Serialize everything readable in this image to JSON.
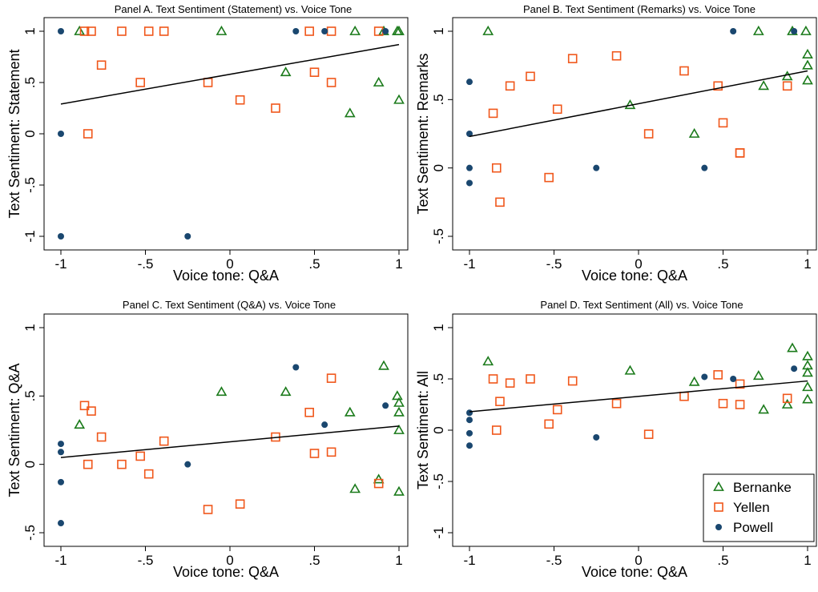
{
  "colors": {
    "Bernanke": "#1a7a1a",
    "Yellen": "#f0571b",
    "Powell": "#1a476f",
    "fitline": "#000000"
  },
  "legend": {
    "position": "inside bottom-right of Panel D",
    "entries": [
      {
        "name": "Bernanke",
        "marker": "triangle-hollow"
      },
      {
        "name": "Yellen",
        "marker": "square-hollow"
      },
      {
        "name": "Powell",
        "marker": "circle-filled"
      }
    ]
  },
  "chart_data": [
    {
      "type": "scatter",
      "title": "Panel A. Text Sentiment (Statement) vs. Voice Tone",
      "xlabel": "Voice tone: Q&A",
      "ylabel": "Text Sentiment: Statement",
      "xlim": [
        -1,
        1
      ],
      "ylim": [
        -1,
        1
      ],
      "xticks": [
        {
          "v": -1,
          "l": "-1"
        },
        {
          "v": -0.5,
          "l": "-.5"
        },
        {
          "v": 0,
          "l": "0"
        },
        {
          "v": 0.5,
          "l": ".5"
        },
        {
          "v": 1,
          "l": "1"
        }
      ],
      "yticks": [
        {
          "v": -1,
          "l": "-1"
        },
        {
          "v": -0.5,
          "l": "-.5"
        },
        {
          "v": 0,
          "l": "0"
        },
        {
          "v": 0.5,
          "l": ".5"
        },
        {
          "v": 1,
          "l": "1"
        }
      ],
      "fit": {
        "x": [
          -1,
          1
        ],
        "y": [
          0.29,
          0.87
        ]
      },
      "series": [
        {
          "name": "Bernanke",
          "x": [
            -0.89,
            -0.05,
            0.33,
            0.71,
            0.74,
            0.88,
            0.91,
            0.99,
            1.0,
            1.0
          ],
          "y": [
            1.0,
            1.0,
            0.6,
            0.2,
            1.0,
            0.5,
            1.0,
            1.0,
            1.0,
            0.33
          ]
        },
        {
          "name": "Yellen",
          "x": [
            -0.86,
            -0.84,
            -0.82,
            -0.76,
            -0.64,
            -0.53,
            -0.48,
            -0.39,
            -0.13,
            0.06,
            0.27,
            0.47,
            0.5,
            0.6,
            0.6,
            0.88
          ],
          "y": [
            1.0,
            0.0,
            1.0,
            0.67,
            1.0,
            0.5,
            1.0,
            1.0,
            0.5,
            0.33,
            0.25,
            1.0,
            0.6,
            1.0,
            0.5,
            1.0
          ]
        },
        {
          "name": "Powell",
          "x": [
            -1.0,
            -1.0,
            -1.0,
            -0.25,
            0.39,
            0.56,
            0.92
          ],
          "y": [
            1.0,
            0.0,
            -1.0,
            -1.0,
            1.0,
            1.0,
            1.0
          ]
        }
      ]
    },
    {
      "type": "scatter",
      "title": "Panel B. Text Sentiment (Remarks) vs. Voice Tone",
      "xlabel": "Voice tone: Q&A",
      "ylabel": "Text Sentiment: Remarks",
      "xlim": [
        -1,
        1
      ],
      "ylim": [
        -0.5,
        1
      ],
      "xticks": [
        {
          "v": -1,
          "l": "-1"
        },
        {
          "v": -0.5,
          "l": "-.5"
        },
        {
          "v": 0,
          "l": "0"
        },
        {
          "v": 0.5,
          "l": ".5"
        },
        {
          "v": 1,
          "l": "1"
        }
      ],
      "yticks": [
        {
          "v": -0.5,
          "l": "-.5"
        },
        {
          "v": 0,
          "l": "0"
        },
        {
          "v": 0.5,
          "l": ".5"
        },
        {
          "v": 1,
          "l": "1"
        }
      ],
      "fit": {
        "x": [
          -1,
          1
        ],
        "y": [
          0.23,
          0.71
        ]
      },
      "series": [
        {
          "name": "Bernanke",
          "x": [
            -0.89,
            -0.05,
            0.33,
            0.71,
            0.74,
            0.88,
            0.91,
            0.99,
            1.0,
            1.0,
            1.0
          ],
          "y": [
            1.0,
            0.46,
            0.25,
            1.0,
            0.6,
            0.67,
            1.0,
            1.0,
            0.83,
            0.75,
            0.64
          ]
        },
        {
          "name": "Yellen",
          "x": [
            -0.86,
            -0.84,
            -0.82,
            -0.76,
            -0.64,
            -0.53,
            -0.48,
            -0.39,
            -0.13,
            0.06,
            0.27,
            0.47,
            0.5,
            0.6,
            0.6,
            0.88
          ],
          "y": [
            0.4,
            0.0,
            -0.25,
            0.6,
            0.67,
            -0.07,
            0.43,
            0.8,
            0.82,
            0.25,
            0.71,
            0.6,
            0.33,
            0.11,
            0.11,
            0.6
          ]
        },
        {
          "name": "Powell",
          "x": [
            -1.0,
            -1.0,
            -1.0,
            -1.0,
            -0.25,
            0.39,
            0.56,
            0.92
          ],
          "y": [
            0.63,
            0.25,
            0.0,
            -0.11,
            0.0,
            0.0,
            1.0,
            1.0
          ]
        }
      ]
    },
    {
      "type": "scatter",
      "title": "Panel C. Text Sentiment (Q&A) vs. Voice Tone",
      "xlabel": "Voice tone: Q&A",
      "ylabel": "Text Sentiment: Q&A",
      "xlim": [
        -1,
        1
      ],
      "ylim": [
        -0.5,
        1
      ],
      "xticks": [
        {
          "v": -1,
          "l": "-1"
        },
        {
          "v": -0.5,
          "l": "-.5"
        },
        {
          "v": 0,
          "l": "0"
        },
        {
          "v": 0.5,
          "l": ".5"
        },
        {
          "v": 1,
          "l": "1"
        }
      ],
      "yticks": [
        {
          "v": -0.5,
          "l": "-.5"
        },
        {
          "v": 0,
          "l": "0"
        },
        {
          "v": 0.5,
          "l": ".5"
        },
        {
          "v": 1,
          "l": "1"
        }
      ],
      "fit": {
        "x": [
          -1,
          1
        ],
        "y": [
          0.05,
          0.28
        ]
      },
      "series": [
        {
          "name": "Bernanke",
          "x": [
            -0.89,
            -0.05,
            0.33,
            0.71,
            0.74,
            0.88,
            0.91,
            0.99,
            1.0,
            1.0,
            1.0,
            1.0
          ],
          "y": [
            0.29,
            0.53,
            0.53,
            0.38,
            -0.18,
            -0.11,
            0.72,
            0.5,
            0.45,
            0.38,
            0.25,
            -0.2
          ]
        },
        {
          "name": "Yellen",
          "x": [
            -0.86,
            -0.84,
            -0.82,
            -0.76,
            -0.64,
            -0.53,
            -0.48,
            -0.39,
            -0.13,
            0.06,
            0.27,
            0.47,
            0.5,
            0.6,
            0.6,
            0.88
          ],
          "y": [
            0.43,
            0.0,
            0.39,
            0.2,
            0.0,
            0.06,
            -0.07,
            0.17,
            -0.33,
            -0.29,
            0.2,
            0.38,
            0.08,
            0.63,
            0.09,
            -0.14
          ]
        },
        {
          "name": "Powell",
          "x": [
            -1.0,
            -1.0,
            -1.0,
            -1.0,
            -0.25,
            0.39,
            0.56,
            0.92
          ],
          "y": [
            0.15,
            0.09,
            -0.13,
            -0.43,
            0.0,
            0.71,
            0.29,
            0.43
          ]
        }
      ]
    },
    {
      "type": "scatter",
      "title": "Panel D. Text Sentiment (All) vs. Voice Tone",
      "xlabel": "Voice tone: Q&A",
      "ylabel": "Text Sentiment: All",
      "xlim": [
        -1,
        1
      ],
      "ylim": [
        -1,
        1
      ],
      "xticks": [
        {
          "v": -1,
          "l": "-1"
        },
        {
          "v": -0.5,
          "l": "-.5"
        },
        {
          "v": 0,
          "l": "0"
        },
        {
          "v": 0.5,
          "l": ".5"
        },
        {
          "v": 1,
          "l": "1"
        }
      ],
      "yticks": [
        {
          "v": -1,
          "l": "-1"
        },
        {
          "v": -0.5,
          "l": "-.5"
        },
        {
          "v": 0,
          "l": "0"
        },
        {
          "v": 0.5,
          "l": ".5"
        },
        {
          "v": 1,
          "l": "1"
        }
      ],
      "fit": {
        "x": [
          -1,
          1
        ],
        "y": [
          0.18,
          0.48
        ]
      },
      "series": [
        {
          "name": "Bernanke",
          "x": [
            -0.89,
            -0.05,
            0.33,
            0.71,
            0.74,
            0.88,
            0.91,
            1.0,
            1.0,
            1.0,
            1.0,
            1.0
          ],
          "y": [
            0.67,
            0.58,
            0.47,
            0.53,
            0.2,
            0.25,
            0.8,
            0.72,
            0.63,
            0.56,
            0.42,
            0.3
          ]
        },
        {
          "name": "Yellen",
          "x": [
            -0.86,
            -0.84,
            -0.82,
            -0.76,
            -0.64,
            -0.53,
            -0.48,
            -0.39,
            -0.13,
            0.06,
            0.27,
            0.47,
            0.5,
            0.6,
            0.6,
            0.88
          ],
          "y": [
            0.5,
            0.0,
            0.28,
            0.46,
            0.5,
            0.06,
            0.2,
            0.48,
            0.26,
            -0.04,
            0.33,
            0.54,
            0.26,
            0.45,
            0.25,
            0.31
          ]
        },
        {
          "name": "Powell",
          "x": [
            -1.0,
            -1.0,
            -1.0,
            -1.0,
            -0.25,
            0.39,
            0.56,
            0.92
          ],
          "y": [
            0.17,
            0.1,
            -0.03,
            -0.15,
            -0.07,
            0.52,
            0.5,
            0.6
          ]
        }
      ]
    }
  ]
}
